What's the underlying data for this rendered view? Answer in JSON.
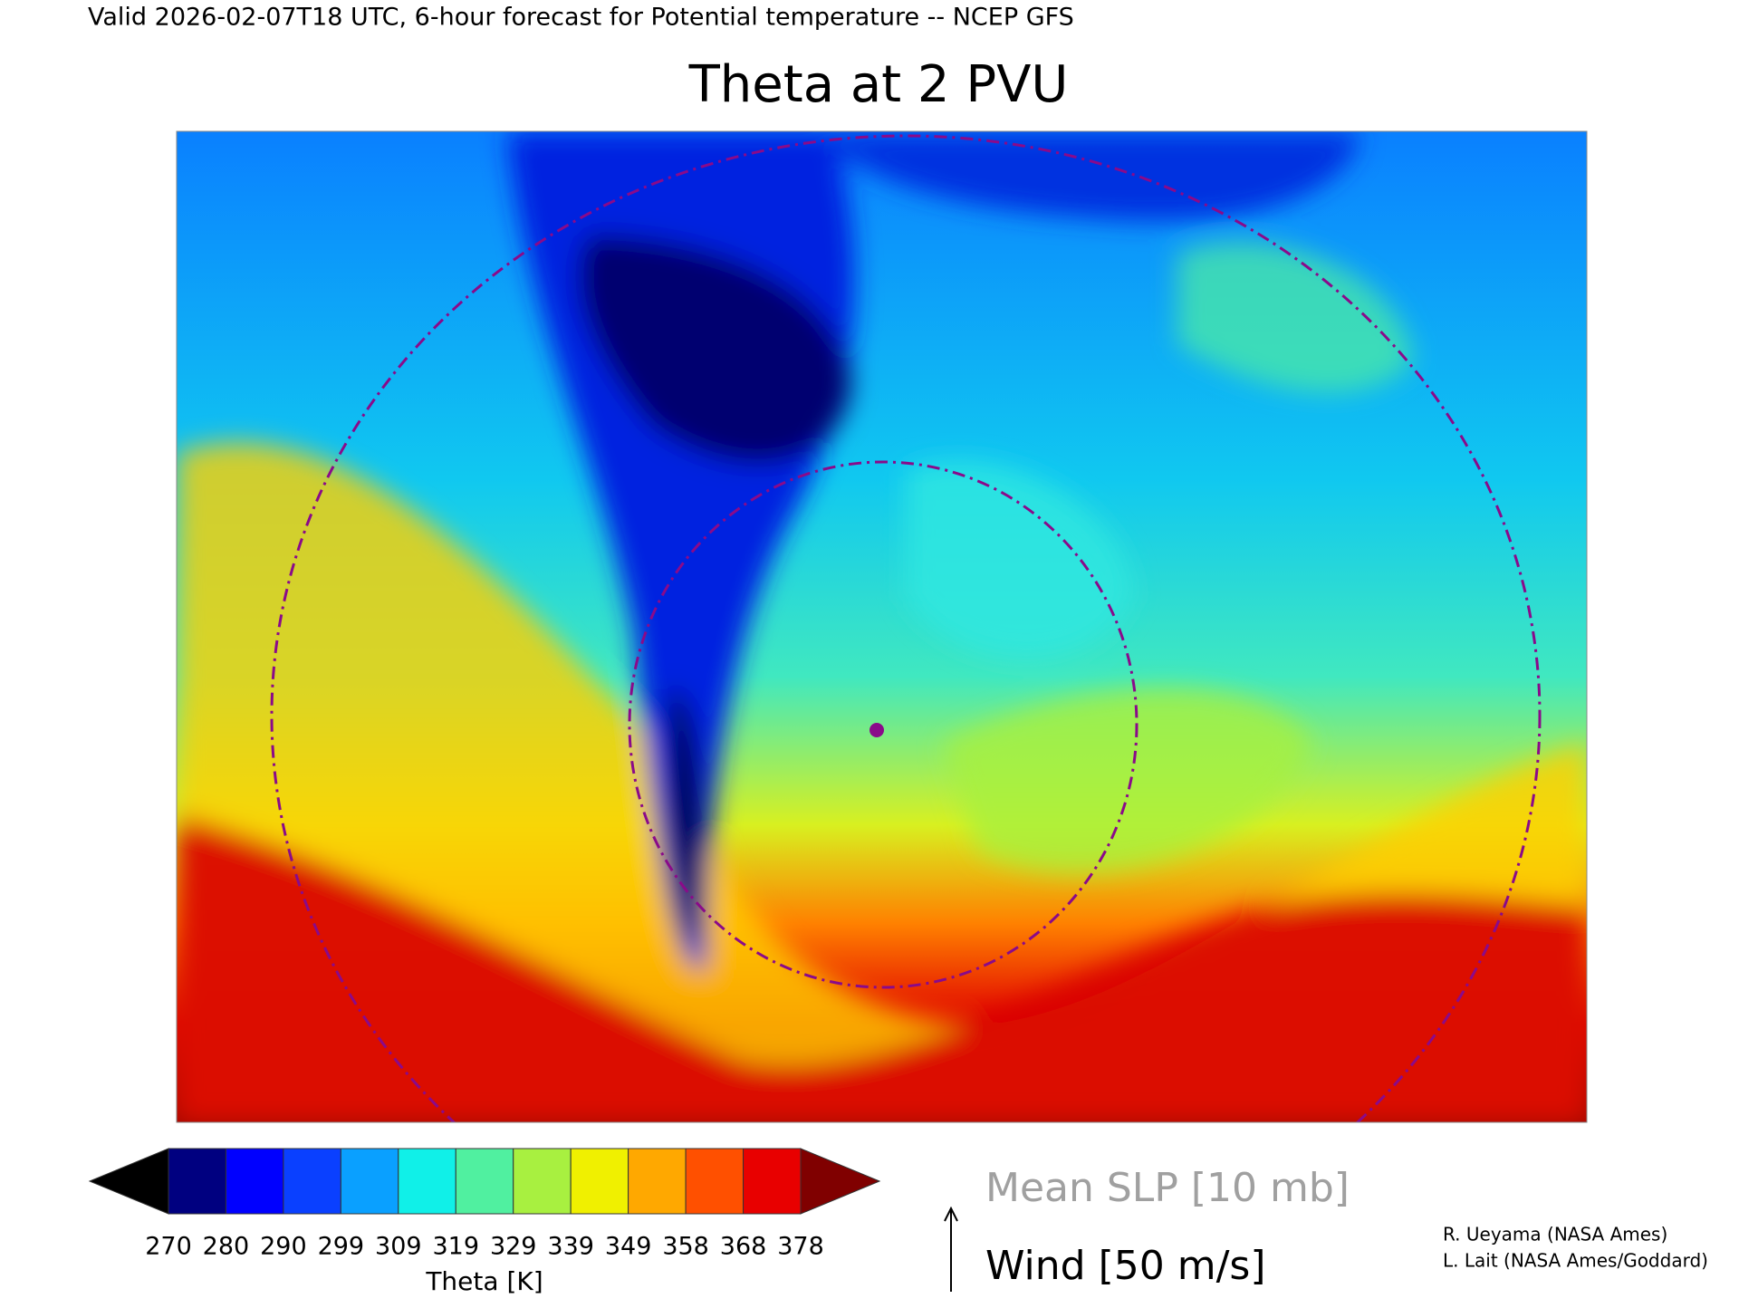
{
  "header": {
    "valid_line": "Valid 2026-02-07T18 UTC, 6-hour forecast for Potential temperature -- NCEP GFS",
    "title": "Theta at 2 PVU"
  },
  "colorbar": {
    "labels": [
      270,
      280,
      290,
      299,
      309,
      319,
      329,
      339,
      349,
      358,
      368,
      378
    ],
    "title": "Theta [K]"
  },
  "legend": {
    "slp": "Mean SLP [10 mb]",
    "wind": "Wind [50 m/s]"
  },
  "credits": [
    "R. Ueyama (NASA Ames)",
    "L. Lait (NASA Ames/Goddard)"
  ]
}
